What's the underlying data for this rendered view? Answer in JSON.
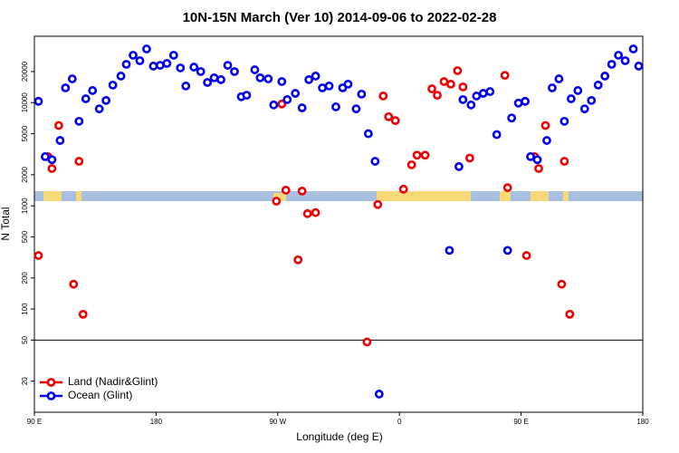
{
  "chart_data": {
    "type": "scatter",
    "title": "10N-15N March (Ver 10)   2014-09-06 to 2022-02-28",
    "x_label": "Longitude (deg E)",
    "y_label": "N Total",
    "xlim": [
      90,
      540
    ],
    "xticks": [
      {
        "value": 90,
        "label": "90 E"
      },
      180,
      {
        "value": 270,
        "label": "90 W"
      },
      {
        "value": 360,
        "label": "0"
      },
      {
        "value": 450,
        "label": "90 E"
      },
      {
        "value": 540,
        "label": "180"
      }
    ],
    "ylim": [
      10,
      44000
    ],
    "ylog": true,
    "yticks": [
      20,
      50,
      100,
      200,
      500,
      1000,
      2000,
      5000,
      10000,
      20000
    ],
    "hline": 50,
    "legend": "lower left",
    "series": [
      {
        "name": "Land (Nadir&Glint)",
        "color": "#ee0000",
        "x": [
          93,
          100,
          103,
          108,
          119,
          123,
          126,
          269,
          273,
          276,
          285,
          288,
          292,
          298,
          336,
          344,
          348,
          352,
          357,
          363,
          369,
          373,
          379,
          384,
          388,
          393,
          398,
          403,
          407,
          412,
          438,
          440,
          454,
          460,
          463,
          468,
          480,
          482,
          486
        ],
        "values": [
          330,
          3000,
          2300,
          6000,
          174,
          2700,
          89,
          1110,
          9700,
          1420,
          300,
          1390,
          840,
          860,
          48,
          1030,
          11600,
          7300,
          6700,
          1450,
          2500,
          3100,
          3100,
          13600,
          11800,
          16000,
          15100,
          20400,
          14200,
          2900,
          18400,
          1500,
          330,
          3000,
          2300,
          6000,
          174,
          2700,
          89
        ]
      },
      {
        "name": "Ocean (Glint)",
        "color": "#0000ee",
        "x": [
          93,
          98,
          103,
          109,
          113,
          118,
          123,
          128,
          133,
          138,
          143,
          148,
          154,
          158,
          163,
          168,
          173,
          178,
          183,
          188,
          193,
          198,
          202,
          208,
          213,
          218,
          223,
          228,
          233,
          238,
          243,
          247,
          253,
          257,
          263,
          267,
          273,
          277,
          283,
          288,
          293,
          298,
          303,
          308,
          313,
          318,
          322,
          328,
          332,
          337,
          342,
          345,
          397,
          404,
          407,
          413,
          417,
          422,
          427,
          432,
          440,
          443,
          448,
          453,
          457,
          462,
          469,
          473,
          478,
          482,
          487,
          492,
          497,
          502,
          507,
          512,
          517,
          522,
          527,
          533,
          537
        ],
        "values": [
          10300,
          3000,
          2800,
          4300,
          13900,
          17000,
          6600,
          10900,
          13100,
          8700,
          10500,
          14800,
          18100,
          23500,
          28800,
          25500,
          33100,
          22600,
          23000,
          24000,
          28800,
          21700,
          14500,
          22100,
          20000,
          15700,
          17400,
          16700,
          23000,
          20000,
          11400,
          11800,
          20800,
          17400,
          17000,
          9500,
          16000,
          10700,
          12300,
          8900,
          16700,
          18100,
          13900,
          14500,
          9100,
          13900,
          15100,
          8700,
          12100,
          5000,
          2700,
          15,
          370,
          2400,
          10700,
          9500,
          11600,
          12300,
          12800,
          4900,
          370,
          7100,
          9900,
          10300,
          3000,
          2800,
          4300,
          13900,
          17000,
          6600,
          10900,
          13100,
          8700,
          10500,
          14800,
          18100,
          23500,
          28800,
          25500,
          33100,
          22600
        ]
      }
    ]
  }
}
